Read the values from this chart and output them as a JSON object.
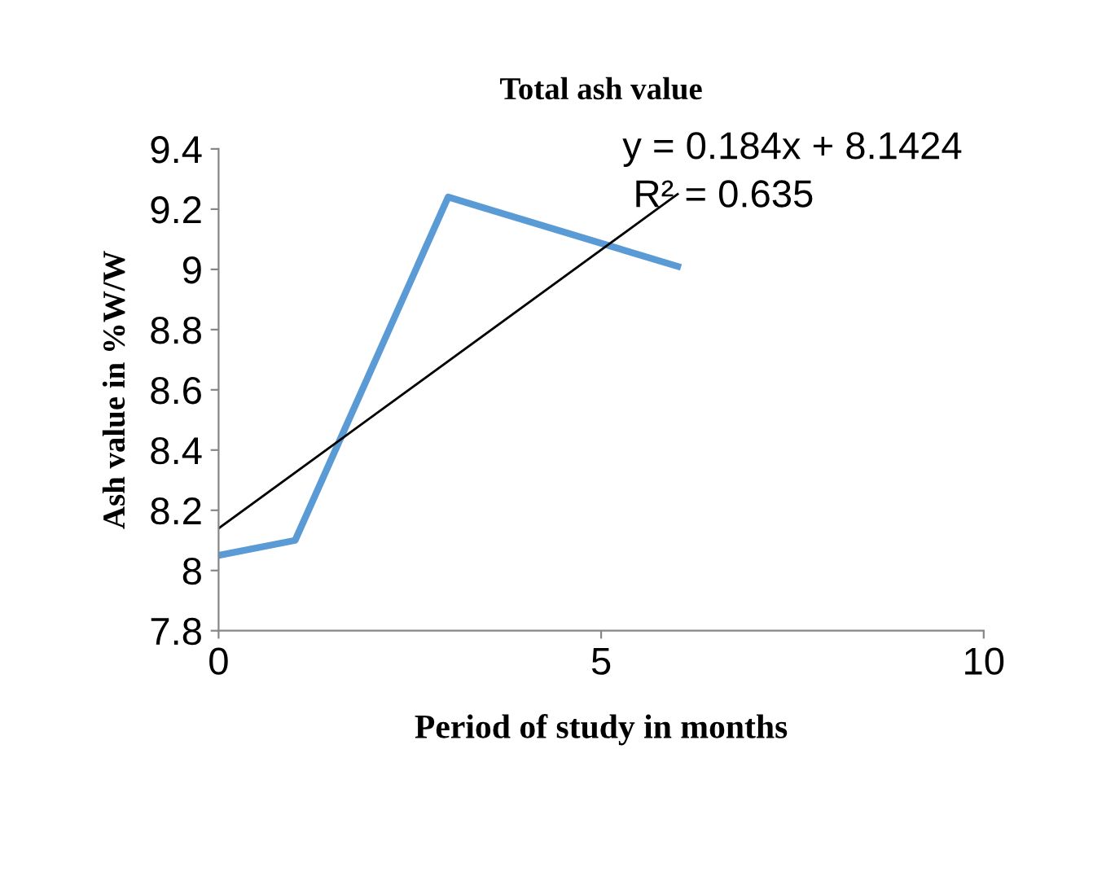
{
  "chart_data": {
    "type": "line",
    "title": "Total ash value",
    "xlabel": "Period of study in months",
    "ylabel": "Ash value in %W/W",
    "x": [
      0,
      1,
      3,
      6
    ],
    "series": [
      {
        "color": "#5b9bd5",
        "values": [
          8.05,
          8.1,
          9.24,
          9.01
        ]
      },
      {
        "type": "line",
        "color": "#000000",
        "x": [
          0,
          6
        ],
        "values": [
          8.14,
          9.25
        ]
      }
    ],
    "annotations": [
      "y = 0.184x + 8.1424",
      "R² = 0.635"
    ],
    "xlim": [
      0,
      10
    ],
    "xticks": [
      0,
      5,
      10
    ],
    "ylim": [
      7.8,
      9.4
    ],
    "yticks": [
      7.8,
      8,
      8.2,
      8.4,
      8.6,
      8.8,
      9,
      9.2,
      9.4
    ],
    "grid": false,
    "marker": "none",
    "line_style": "solid"
  }
}
